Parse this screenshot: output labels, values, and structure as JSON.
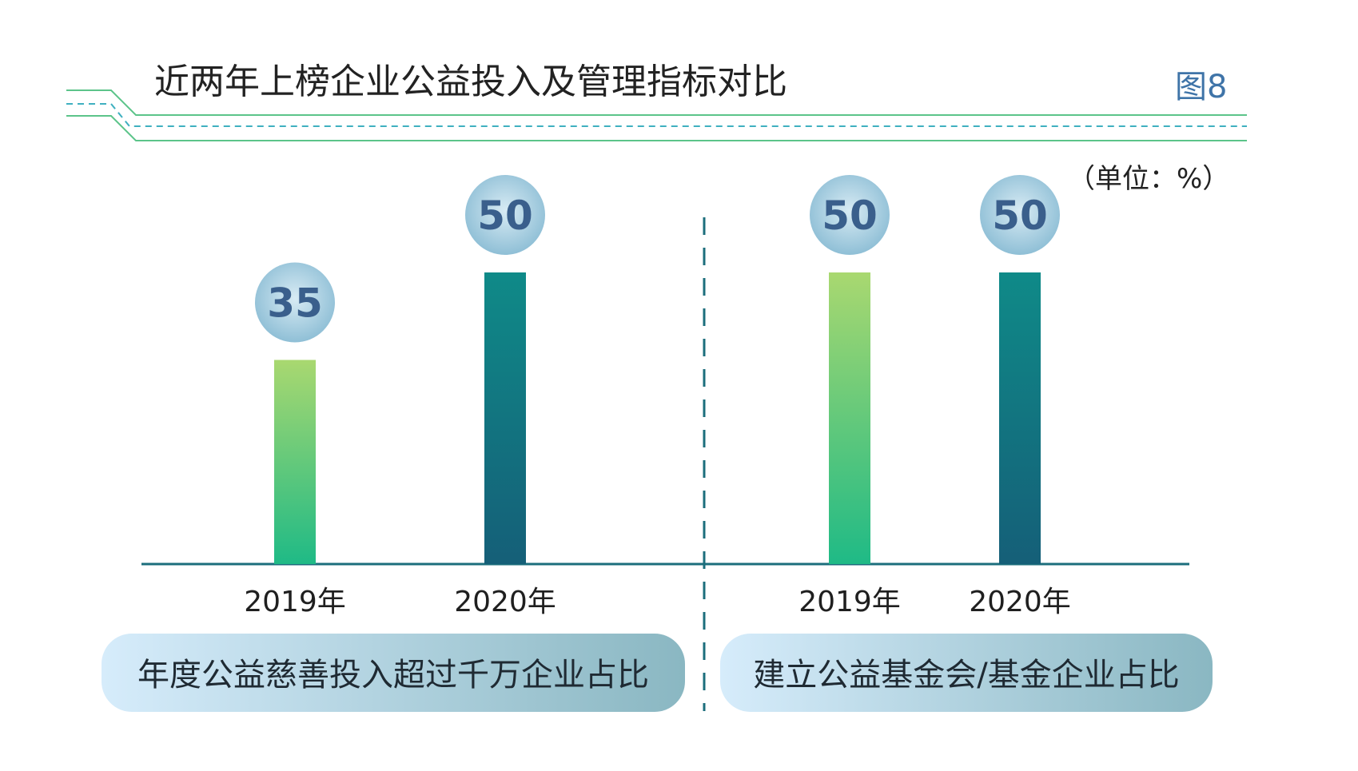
{
  "header": {
    "title": "近两年上榜企业公益投入及管理指标对比",
    "figure_label": "图8"
  },
  "unit_label": "（单位：%）",
  "colors": {
    "bar_2019_top": "#a9d870",
    "bar_2019_bottom": "#1fba86",
    "bar_2020_top": "#0f8a88",
    "bar_2020_bottom": "#155f78",
    "bubble_center": "#d8ebf4",
    "bubble_edge": "#8fbfd6",
    "bubble_text": "#3a5f8c",
    "axis": "#1c6e7c",
    "divider": "#1c6e7c",
    "header_line": "#5cc48a",
    "header_dash": "#3fb0c0",
    "pill_left": "#d6ecfb",
    "pill_right": "#8ab7c2",
    "title_text": "#222222",
    "figure_label_text": "#3f74a8"
  },
  "chart_data": [
    {
      "type": "bar",
      "title": "年度公益慈善投入超过千万企业占比",
      "categories": [
        "2019年",
        "2020年"
      ],
      "values": [
        35,
        50
      ],
      "unit": "%"
    },
    {
      "type": "bar",
      "title": "建立公益基金会/基金企业占比",
      "categories": [
        "2019年",
        "2020年"
      ],
      "values": [
        50,
        50
      ],
      "unit": "%"
    }
  ]
}
